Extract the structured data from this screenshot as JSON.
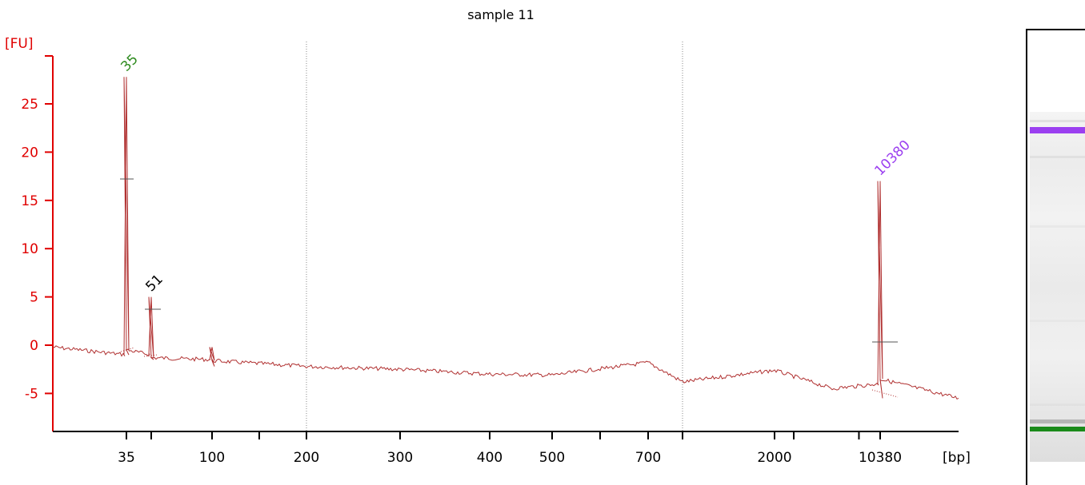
{
  "chart_data": {
    "type": "line",
    "title": "sample 11",
    "ylabel": "[FU]",
    "xlabel": "[bp]",
    "ylim": [
      -9,
      29
    ],
    "y_ticks": [
      -5,
      0,
      5,
      10,
      15,
      20,
      25
    ],
    "x_tick_labels": [
      "35",
      "100",
      "200",
      "300",
      "400",
      "500",
      "700",
      "2000",
      "10380"
    ],
    "peaks": [
      {
        "label": "35",
        "x": 35,
        "y": 27.8,
        "color": "#2e8b1e"
      },
      {
        "label": "51",
        "x": 51,
        "y": 5.0,
        "color": "#000000"
      },
      {
        "label": "10380",
        "x": 10380,
        "y": 17.0,
        "color": "#9b3ff0"
      }
    ],
    "series": [
      {
        "color": "#b03030",
        "trace": [
          [
            20,
            -0.2
          ],
          [
            35,
            -1.0
          ],
          [
            35,
            27.8
          ],
          [
            35,
            -0.5
          ],
          [
            51,
            -1.0
          ],
          [
            51,
            5.0
          ],
          [
            51,
            -1.3
          ],
          [
            100,
            -1.5
          ],
          [
            100,
            -0.2
          ],
          [
            100,
            -1.6
          ],
          [
            200,
            -2.2
          ],
          [
            300,
            -2.5
          ],
          [
            400,
            -3.0
          ],
          [
            500,
            -3.1
          ],
          [
            700,
            -1.8
          ],
          [
            1000,
            -3.8
          ],
          [
            2000,
            -2.6
          ],
          [
            5000,
            -4.5
          ],
          [
            10380,
            -4.0
          ],
          [
            10380,
            17.0
          ],
          [
            10380,
            -3.5
          ],
          [
            17000,
            -5.5
          ]
        ]
      }
    ]
  },
  "gel": {
    "upper_marker_color": "#9b3ff0",
    "lower_marker_color": "#1a8a1a"
  }
}
